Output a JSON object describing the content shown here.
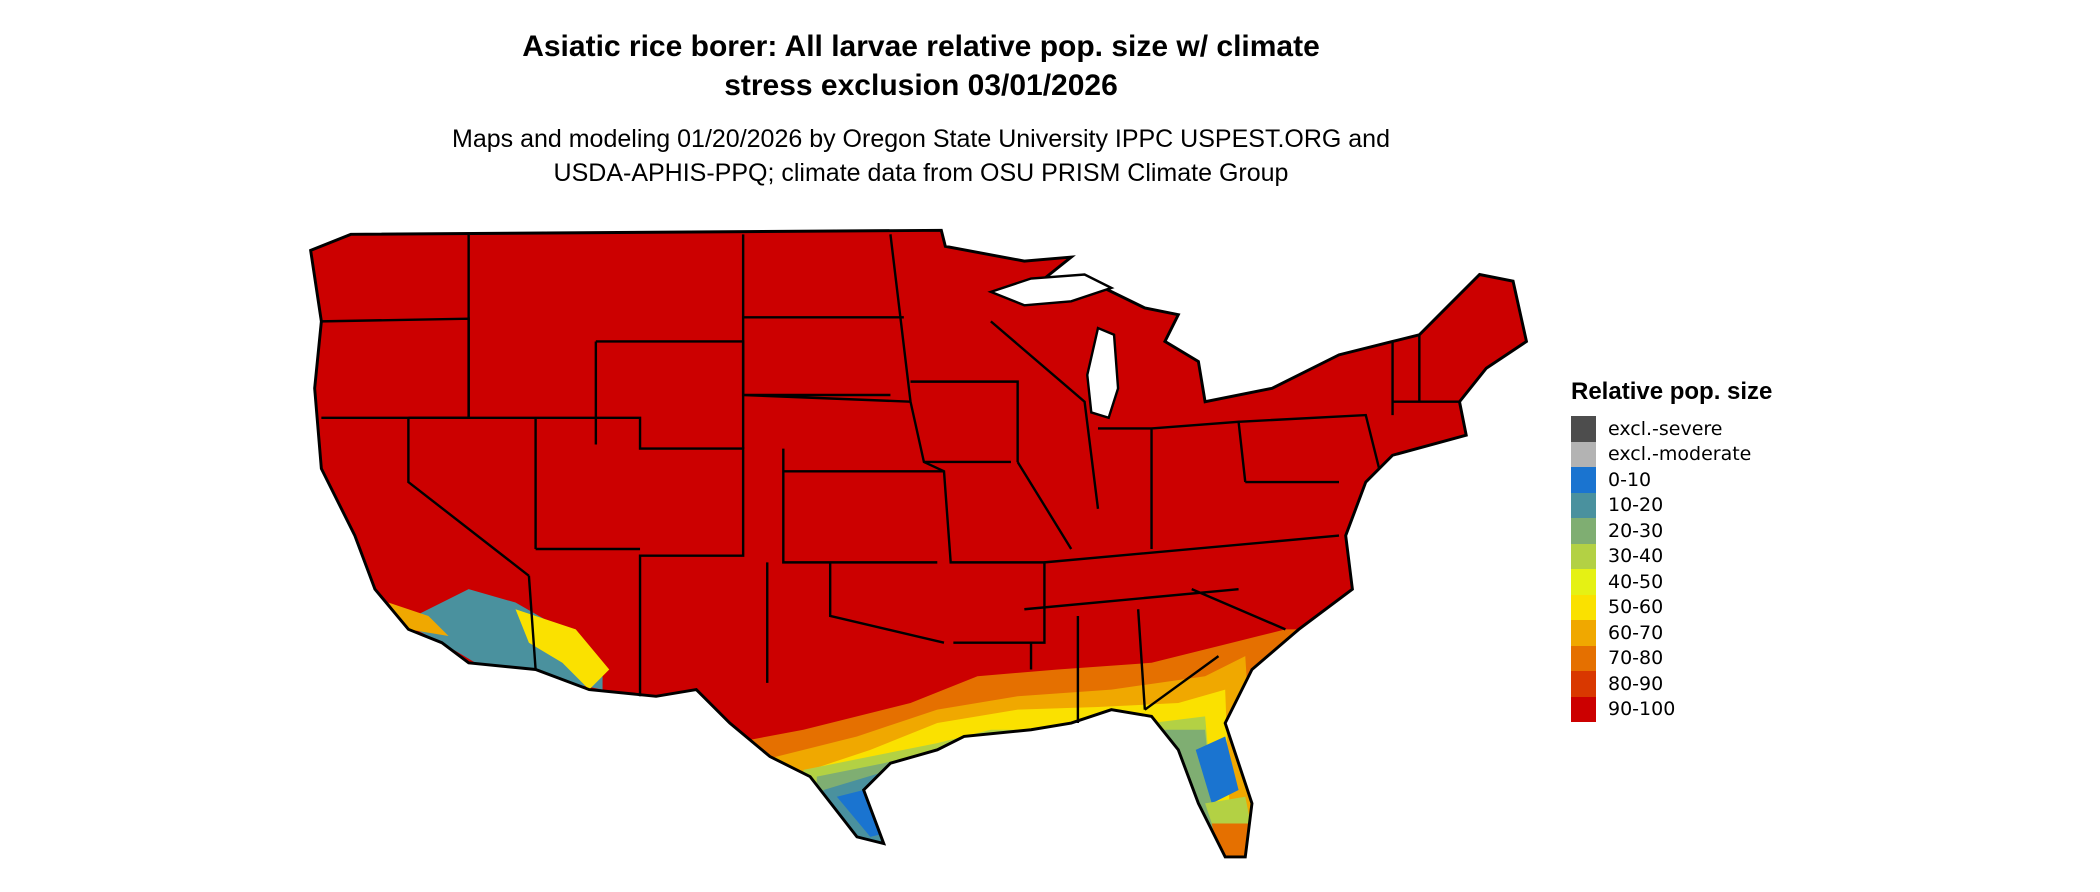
{
  "title": {
    "line1": "Asiatic rice borer: All larvae relative pop. size w/ climate",
    "line2": "stress exclusion 03/01/2026"
  },
  "subtitle": {
    "line1": "Maps and modeling 01/20/2026 by Oregon State University IPPC USPEST.ORG and",
    "line2": "USDA-APHIS-PPQ; climate data from OSU PRISM Climate Group"
  },
  "map": {
    "region": "Contiguous United States",
    "dominant_category": "90-100"
  },
  "legend": {
    "title": "Relative pop. size",
    "items": [
      {
        "label": "excl.-severe",
        "color": "#4d4d4d"
      },
      {
        "label": "excl.-moderate",
        "color": "#b3b3b3"
      },
      {
        "label": "0-10",
        "color": "#1a74d0"
      },
      {
        "label": "10-20",
        "color": "#4a919e"
      },
      {
        "label": "20-30",
        "color": "#7fae72"
      },
      {
        "label": "30-40",
        "color": "#b3d144"
      },
      {
        "label": "40-50",
        "color": "#e5f114"
      },
      {
        "label": "50-60",
        "color": "#fae100"
      },
      {
        "label": "60-70",
        "color": "#f0a800"
      },
      {
        "label": "70-80",
        "color": "#e57000"
      },
      {
        "label": "80-90",
        "color": "#d93800"
      },
      {
        "label": "90-100",
        "color": "#cc0000"
      }
    ]
  }
}
